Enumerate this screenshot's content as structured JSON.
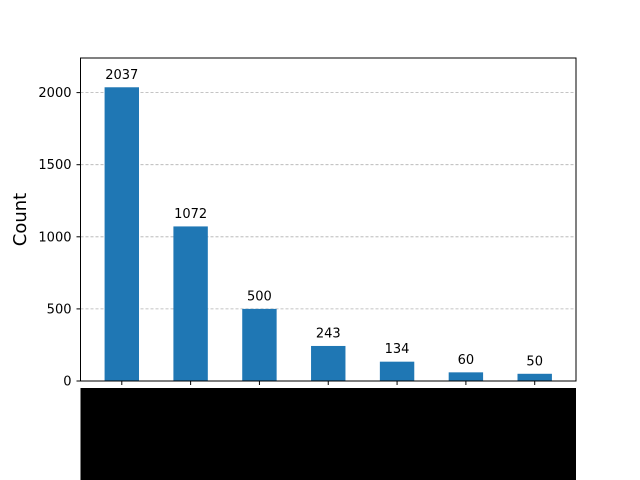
{
  "chart_data": {
    "type": "bar",
    "title": "",
    "xlabel": "",
    "ylabel": "Count",
    "ylim": [
      0,
      2240
    ],
    "yticks": [
      0,
      500,
      1000,
      1500,
      2000
    ],
    "grid": "horizontal dashed",
    "legend": "none",
    "values": [
      2037,
      1072,
      500,
      243,
      134,
      60,
      50
    ],
    "bar_color": "#1f77b4",
    "grid_color": "#b0b0b0",
    "x_tick_labels_area_color": "#000000"
  }
}
